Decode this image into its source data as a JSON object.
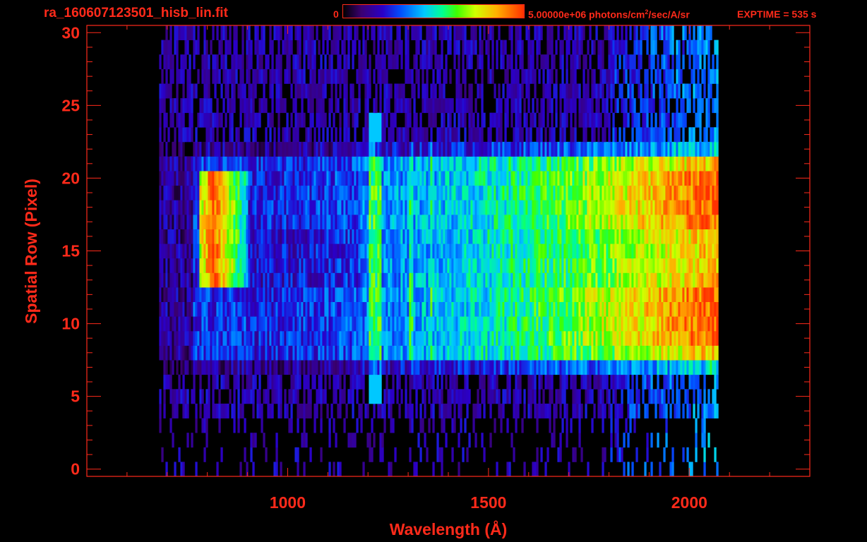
{
  "header": {
    "file_title": "ra_160607123501_hisb_lin.fit",
    "colorbar_min": "0",
    "colorbar_max": "5.00000e+06 photons/cm",
    "colorbar_max_sup": "2",
    "colorbar_max_tail": "/sec/A/sr",
    "exptime": "EXPTIME = 535 s"
  },
  "chart_data": {
    "type": "heatmap",
    "xlabel": "Wavelength (Å)",
    "ylabel": "Spatial Row (Pixel)",
    "xlim": [
      500,
      2300
    ],
    "ylim": [
      -0.5,
      30.5
    ],
    "x_ticks": [
      1000,
      1500,
      2000
    ],
    "y_ticks": [
      0,
      5,
      10,
      15,
      20,
      25,
      30
    ],
    "x_tick_labels": [
      "1000",
      "1500",
      "2000"
    ],
    "y_tick_labels": [
      "0",
      "5",
      "10",
      "15",
      "20",
      "25",
      "30"
    ],
    "colorbar": {
      "min": 0,
      "max": 5000000,
      "units": "photons/cm^2/sec/A/sr",
      "colormap": "rainbow"
    },
    "data_extent": {
      "x_min": 680,
      "x_max": 2070,
      "rows": 31
    },
    "features": [
      {
        "label": "bright slit region",
        "row_min": 7,
        "row_max": 22,
        "x_min": 760,
        "x_max": 2060
      },
      {
        "label": "emission line",
        "x": 1216,
        "row_min": 7,
        "row_max": 24
      },
      {
        "label": "emission blob",
        "x": 820,
        "row_min": 13,
        "row_max": 20
      },
      {
        "label": "red continuum peak",
        "x": 2000,
        "row_min": 9,
        "row_max": 21
      }
    ]
  },
  "colors": {
    "axis": "#ff2a1a",
    "background": "#000000"
  }
}
